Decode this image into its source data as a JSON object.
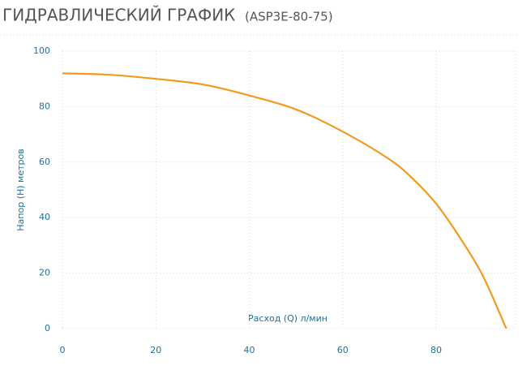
{
  "chart_data": {
    "type": "line",
    "title": "ГИДРАВЛИЧЕСКИЙ ГРАФИК",
    "subtitle": "(ASP3E-80-75)",
    "x_label": "Расход (Q) л/мин",
    "y_label": "Напор (H) метров",
    "x": [
      0,
      10,
      20,
      30,
      40,
      50,
      60,
      70,
      75,
      80,
      85,
      90,
      95
    ],
    "series": [
      {
        "name": "ASP3E-80-75",
        "color": "#f39a1e",
        "values": [
          92,
          91.5,
          90,
          88,
          84,
          79,
          71,
          61,
          54,
          45,
          33,
          19,
          0
        ]
      }
    ],
    "xlim": [
      0,
      97
    ],
    "ylim": [
      0,
      100
    ],
    "xticks": [
      0,
      20,
      40,
      60,
      80
    ],
    "yticks": [
      0,
      20,
      40,
      60,
      80,
      100
    ],
    "grid": true
  }
}
